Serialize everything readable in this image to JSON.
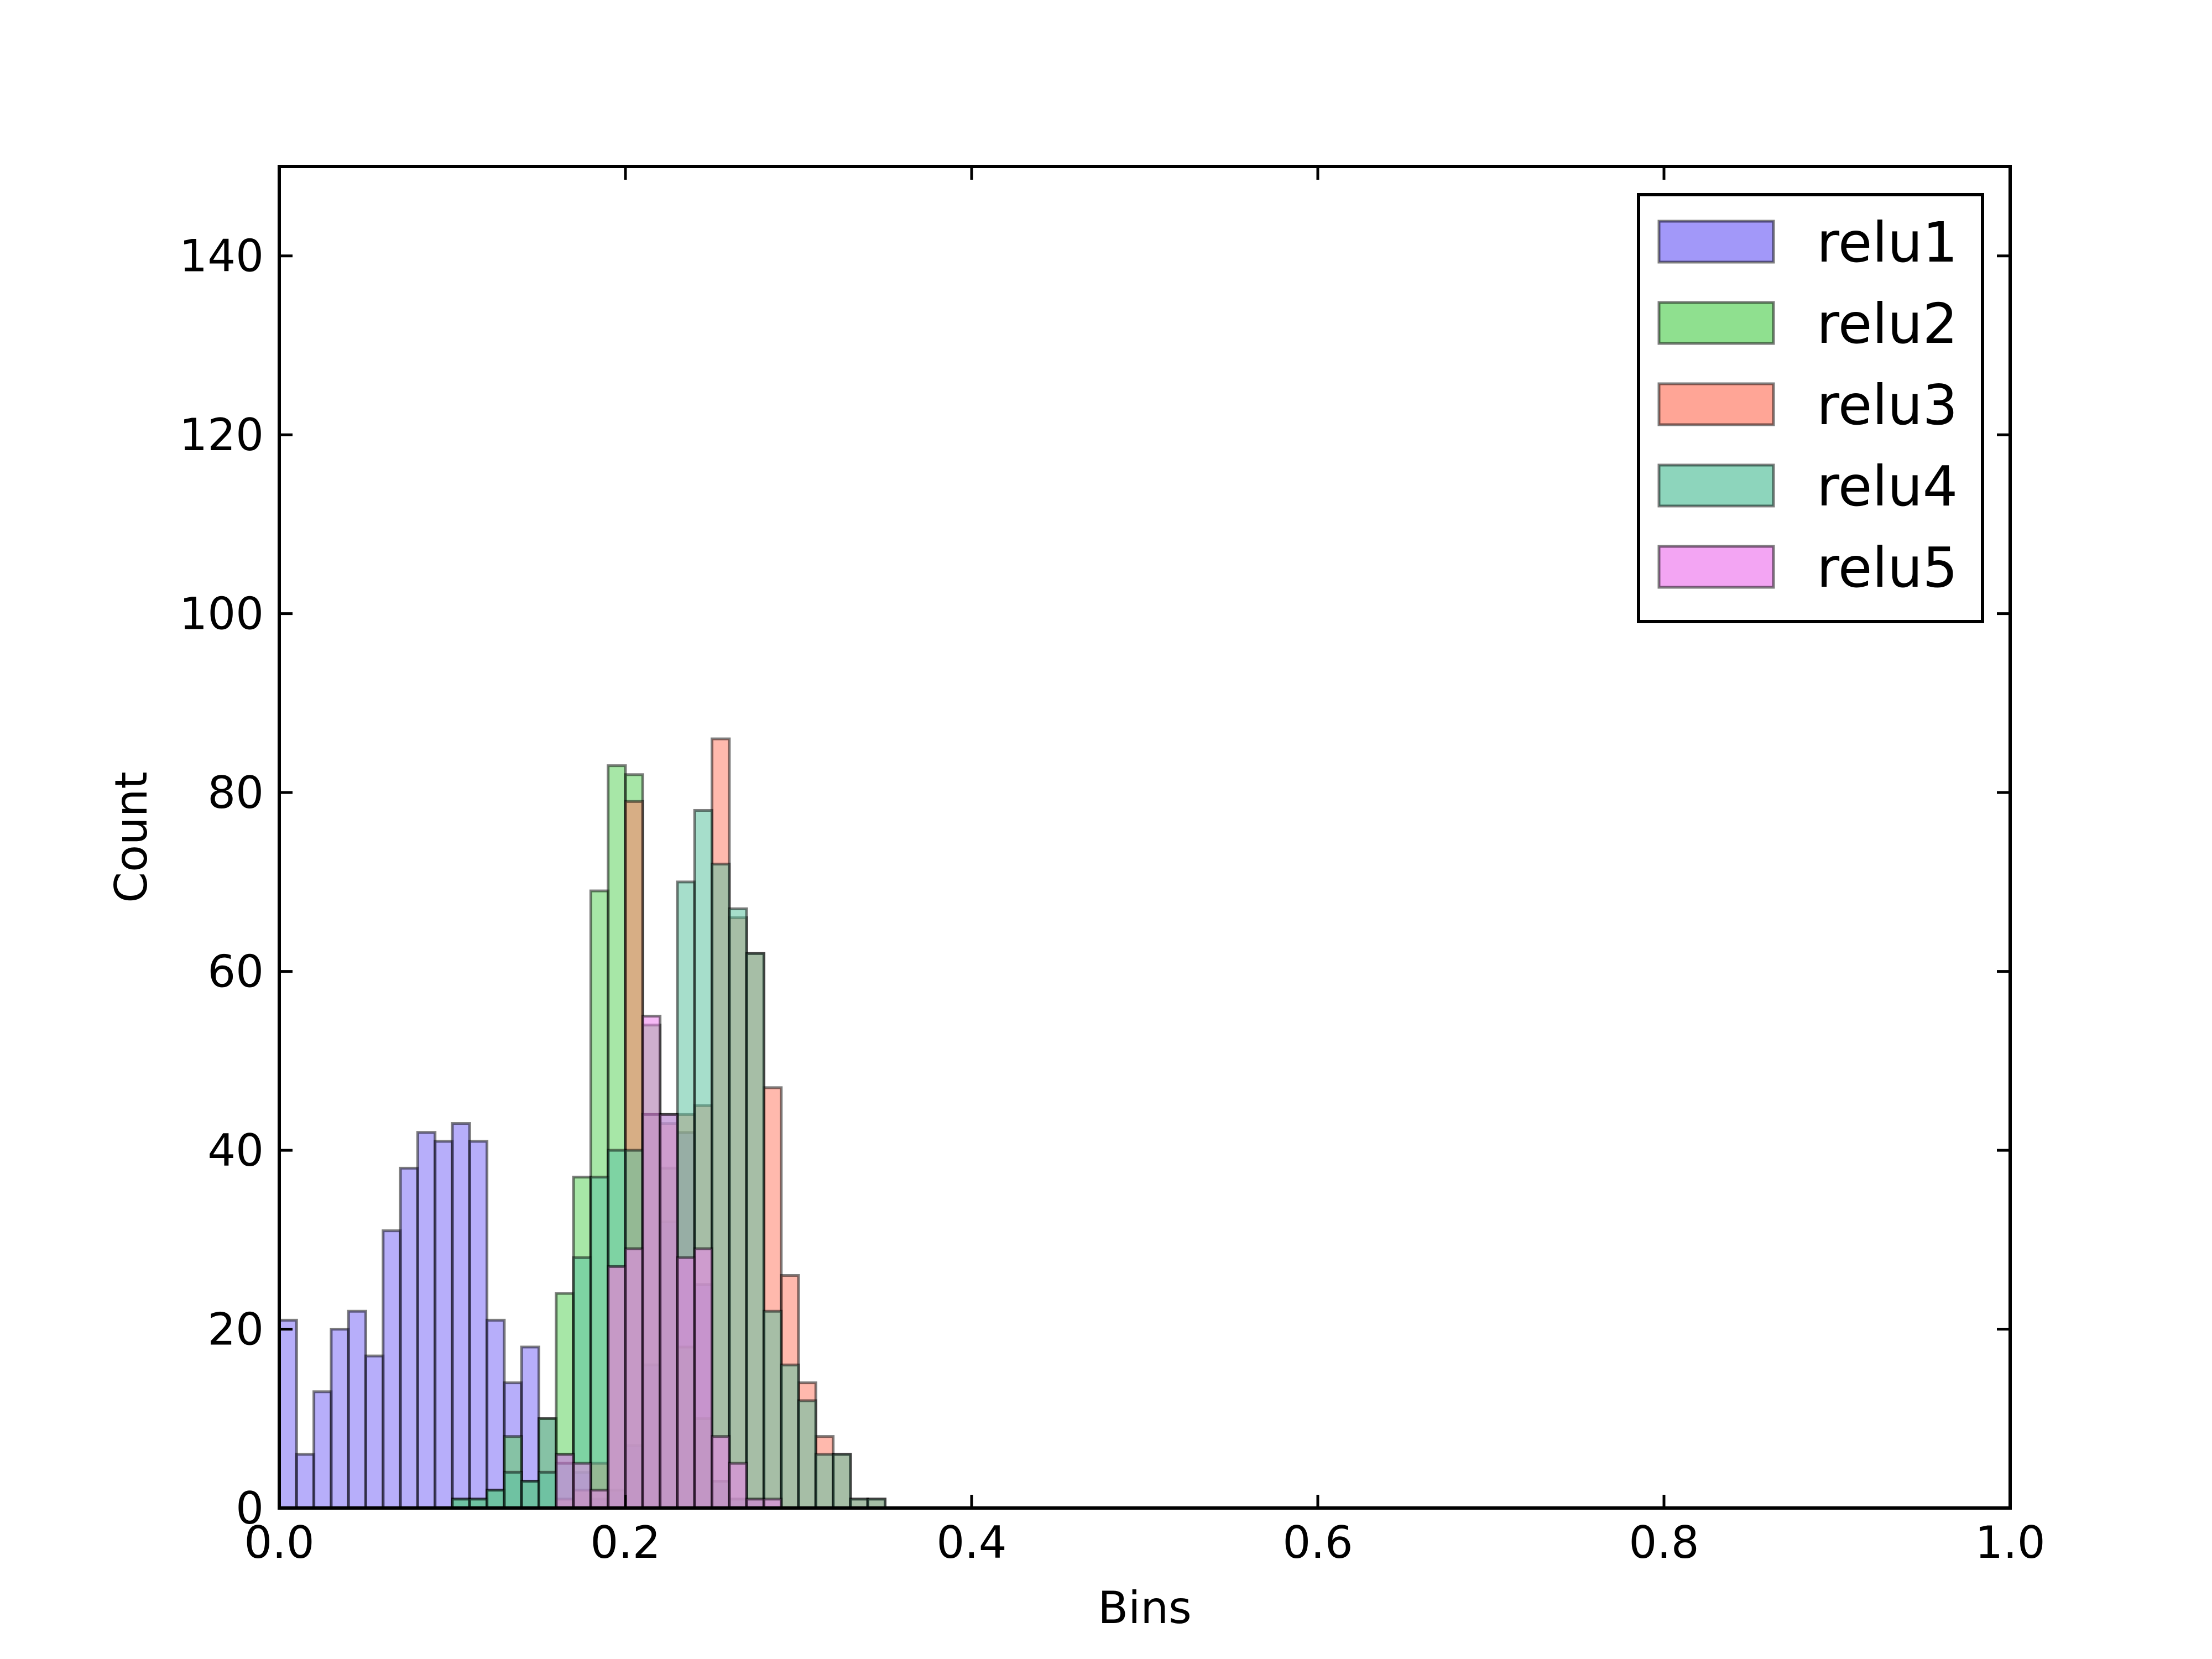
{
  "chart_data": {
    "type": "bar",
    "subtype": "overlaid-histogram",
    "title": "",
    "xlabel": "Bins",
    "ylabel": "Count",
    "xlim": [
      0.0,
      1.0
    ],
    "ylim": [
      0,
      150
    ],
    "x_ticks": [
      "0.0",
      "0.2",
      "0.4",
      "0.6",
      "0.8",
      "1.0"
    ],
    "y_ticks": [
      "0",
      "20",
      "40",
      "60",
      "80",
      "100",
      "120",
      "140"
    ],
    "grid": false,
    "legend_position": "top-right",
    "bin_width": 0.01,
    "bin_starts": [
      0.0,
      0.01,
      0.02,
      0.03,
      0.04,
      0.05,
      0.06,
      0.07,
      0.08,
      0.09,
      0.1,
      0.11,
      0.12,
      0.13,
      0.14,
      0.15,
      0.16,
      0.17,
      0.18,
      0.19,
      0.2,
      0.21,
      0.22,
      0.23,
      0.24,
      0.25,
      0.26,
      0.27,
      0.28,
      0.29,
      0.3,
      0.31,
      0.32,
      0.33,
      0.34
    ],
    "series": [
      {
        "name": "relu1",
        "color": "#7b6cf6",
        "values": [
          21,
          6,
          13,
          20,
          22,
          17,
          31,
          38,
          42,
          41,
          43,
          41,
          21,
          14,
          18,
          10,
          6,
          4,
          1,
          2,
          7,
          16,
          32,
          42,
          25,
          3,
          1,
          1,
          0,
          0,
          0,
          0,
          0,
          0,
          0
        ]
      },
      {
        "name": "relu2",
        "color": "#5fd35f",
        "values": [
          0,
          0,
          0,
          0,
          0,
          0,
          0,
          0,
          0,
          0,
          1,
          1,
          2,
          8,
          3,
          10,
          24,
          37,
          69,
          83,
          82,
          54,
          38,
          18,
          10,
          3,
          1,
          1,
          0,
          0,
          0,
          0,
          0,
          0,
          0
        ]
      },
      {
        "name": "relu3",
        "color": "#ff7f6a",
        "values": [
          0,
          0,
          0,
          0,
          0,
          0,
          0,
          0,
          0,
          0,
          0,
          0,
          0,
          0,
          0,
          0,
          1,
          2,
          5,
          27,
          79,
          44,
          43,
          44,
          45,
          86,
          66,
          62,
          47,
          26,
          14,
          8,
          6,
          1,
          1
        ]
      },
      {
        "name": "relu4",
        "color": "#5cc3a0",
        "values": [
          0,
          0,
          0,
          0,
          0,
          0,
          0,
          0,
          0,
          0,
          1,
          1,
          2,
          4,
          3,
          4,
          5,
          28,
          37,
          40,
          40,
          44,
          44,
          70,
          78,
          72,
          67,
          62,
          22,
          16,
          12,
          6,
          6,
          1,
          1
        ]
      },
      {
        "name": "relu5",
        "color": "#ee7fee",
        "values": [
          0,
          0,
          0,
          0,
          0,
          0,
          0,
          0,
          0,
          0,
          0,
          0,
          0,
          0,
          0,
          0,
          6,
          5,
          2,
          27,
          29,
          55,
          44,
          28,
          29,
          8,
          5,
          1,
          1,
          0,
          0,
          0,
          0,
          0,
          0
        ]
      }
    ]
  }
}
